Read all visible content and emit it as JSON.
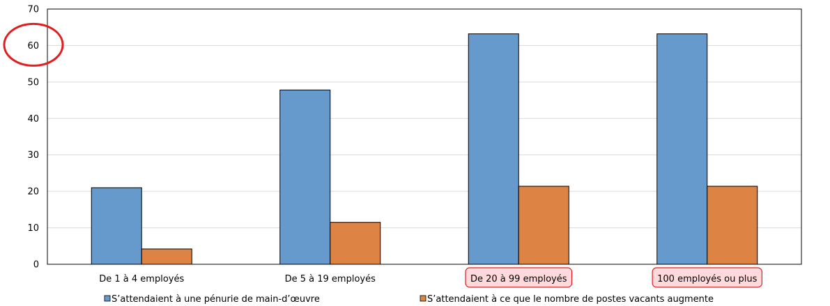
{
  "colors": {
    "series1": "#6699cc",
    "series2": "#dd8344",
    "bar_stroke": "#000000",
    "grid": "#d9d9d9",
    "annotation_circle": "#e31d1d",
    "highlight_fill": "#ffd9dc",
    "highlight_stroke": "#e31d1d"
  },
  "annotations": {
    "circled_tick": 60,
    "highlighted_categories": [
      "De 20 à 99 employés",
      "100 employés ou plus"
    ]
  },
  "chart_data": {
    "type": "bar",
    "categories": [
      "De 1 à 4 employés",
      "De 5 à 19 employés",
      "De 20 à 99 employés",
      "100 employés ou plus"
    ],
    "series": [
      {
        "name": "S’attendaient à une pénurie de main-d’œuvre",
        "values": [
          21,
          47.8,
          63.2,
          63.2
        ]
      },
      {
        "name": "S’attendaient à ce que le nombre de postes vacants augmente",
        "values": [
          4.2,
          11.5,
          21.4,
          21.4
        ]
      }
    ],
    "ylim": [
      0,
      70
    ],
    "yticks": [
      0,
      10,
      20,
      30,
      40,
      50,
      60,
      70
    ],
    "grid": true,
    "legend": "bottom"
  }
}
